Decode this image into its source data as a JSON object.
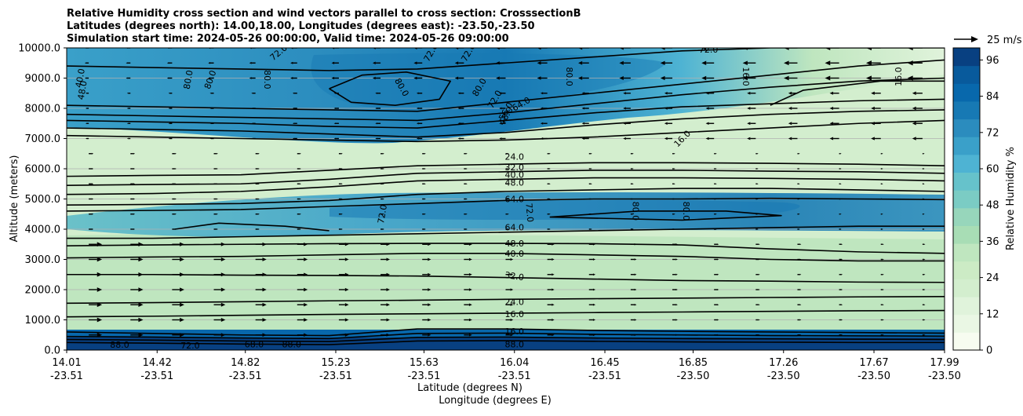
{
  "chart_data": {
    "type": "contour",
    "title_lines": [
      "Relative Humidity cross section and wind vectors parallel to cross section: CrosssectionB",
      "Latitudes (degrees north): 14.00,18.00, Longitudes (degrees east): -23.50,-23.50",
      "Simulation start time: 2024-05-26 00:00:00, Valid time: 2024-05-26 09:00:00"
    ],
    "xlabel": "Latitude (degrees N)",
    "xlabel2": "Longitude (degrees E)",
    "ylabel": "Altitude (meters)",
    "x_ticks": [
      {
        "lat": "14.01",
        "lon": "-23.51"
      },
      {
        "lat": "14.42",
        "lon": "-23.51"
      },
      {
        "lat": "14.82",
        "lon": "-23.51"
      },
      {
        "lat": "15.23",
        "lon": "-23.51"
      },
      {
        "lat": "15.63",
        "lon": "-23.51"
      },
      {
        "lat": "16.04",
        "lon": "-23.51"
      },
      {
        "lat": "16.45",
        "lon": "-23.51"
      },
      {
        "lat": "16.85",
        "lon": "-23.50"
      },
      {
        "lat": "17.26",
        "lon": "-23.50"
      },
      {
        "lat": "17.67",
        "lon": "-23.50"
      },
      {
        "lat": "17.99",
        "lon": "-23.50"
      }
    ],
    "y_ticks": [
      "0.0",
      "1000.0",
      "2000.0",
      "3000.0",
      "4000.0",
      "5000.0",
      "6000.0",
      "7000.0",
      "8000.0",
      "9000.0",
      "10000.0"
    ],
    "ylim": [
      0,
      10000
    ],
    "grid": "horizontal",
    "colorbar": {
      "label": "Relative Humidity %",
      "ticks": [
        "0",
        "12",
        "24",
        "36",
        "48",
        "60",
        "72",
        "84",
        "96"
      ],
      "range": [
        0,
        100
      ],
      "colors": [
        "#f7fcf0",
        "#eaf7e4",
        "#e0f3db",
        "#d3eece",
        "#ccebc5",
        "#bfe6bf",
        "#a8ddb5",
        "#97d6bb",
        "#7bccc4",
        "#66c2cb",
        "#4eb3d3",
        "#3aa0c9",
        "#2b8cbe",
        "#1779b4",
        "#0868ac",
        "#085a9c",
        "#084081"
      ]
    },
    "quiver_key": {
      "label": "25 m/s"
    },
    "contour_labels": [
      {
        "text": "88.0",
        "lat": 14.25,
        "alt": 180,
        "rot": 0
      },
      {
        "text": "72.0",
        "lat": 14.57,
        "alt": 160,
        "rot": 0
      },
      {
        "text": "68.0",
        "lat": 14.86,
        "alt": 200,
        "rot": 0
      },
      {
        "text": "88.0",
        "lat": 15.03,
        "alt": 200,
        "rot": 0
      },
      {
        "text": "16.0",
        "lat": 16.04,
        "alt": 620,
        "rot": 0
      },
      {
        "text": "88.0",
        "lat": 16.04,
        "alt": 200,
        "rot": 0
      },
      {
        "text": "16.0",
        "lat": 16.04,
        "alt": 1200,
        "rot": 0
      },
      {
        "text": "24.0",
        "lat": 16.04,
        "alt": 1600,
        "rot": 0
      },
      {
        "text": "32.0",
        "lat": 16.04,
        "alt": 2450,
        "rot": 8
      },
      {
        "text": "40.0",
        "lat": 16.04,
        "alt": 3200,
        "rot": 0
      },
      {
        "text": "48.0",
        "lat": 16.04,
        "alt": 3530,
        "rot": 0
      },
      {
        "text": "64.0",
        "lat": 16.04,
        "alt": 4070,
        "rot": 0
      },
      {
        "text": "72.0",
        "lat": 15.44,
        "alt": 4500,
        "rot": -80
      },
      {
        "text": "72.0",
        "lat": 16.11,
        "alt": 4550,
        "rot": 85
      },
      {
        "text": "80.0",
        "lat": 16.59,
        "alt": 4600,
        "rot": 90
      },
      {
        "text": "80.0",
        "lat": 16.82,
        "alt": 4600,
        "rot": 90
      },
      {
        "text": "64.0",
        "lat": 16.04,
        "alt": 5000,
        "rot": 0
      },
      {
        "text": "48.0",
        "lat": 16.04,
        "alt": 5550,
        "rot": 0
      },
      {
        "text": "40.0",
        "lat": 16.04,
        "alt": 5800,
        "rot": 0
      },
      {
        "text": "32.0",
        "lat": 16.04,
        "alt": 6050,
        "rot": 0
      },
      {
        "text": "24.0",
        "lat": 16.04,
        "alt": 6400,
        "rot": 0
      },
      {
        "text": "16.0",
        "lat": 16.8,
        "alt": 7000,
        "rot": -45
      },
      {
        "text": "48.0",
        "lat": 16.0,
        "alt": 7750,
        "rot": -60
      },
      {
        "text": "56.0",
        "lat": 16.0,
        "alt": 7900,
        "rot": -60
      },
      {
        "text": "64.0",
        "lat": 16.07,
        "alt": 8150,
        "rot": -30
      },
      {
        "text": "72.0",
        "lat": 15.95,
        "alt": 8300,
        "rot": -60
      },
      {
        "text": "80.0",
        "lat": 15.88,
        "alt": 8700,
        "rot": -60
      },
      {
        "text": "80.0",
        "lat": 15.53,
        "alt": 8700,
        "rot": 60
      },
      {
        "text": "80.0",
        "lat": 16.29,
        "alt": 9050,
        "rot": 90
      },
      {
        "text": "16.0",
        "lat": 17.09,
        "alt": 9050,
        "rot": 90
      },
      {
        "text": "16.0",
        "lat": 17.78,
        "alt": 9050,
        "rot": -90
      },
      {
        "text": "80.0",
        "lat": 14.56,
        "alt": 8950,
        "rot": -80
      },
      {
        "text": "80.0",
        "lat": 14.66,
        "alt": 8950,
        "rot": -70
      },
      {
        "text": "80.0",
        "lat": 14.92,
        "alt": 8950,
        "rot": 90
      },
      {
        "text": "48.0",
        "lat": 14.08,
        "alt": 8600,
        "rot": -80
      },
      {
        "text": "40.0",
        "lat": 14.07,
        "alt": 9000,
        "rot": -80
      },
      {
        "text": "72.0",
        "lat": 14.97,
        "alt": 9850,
        "rot": -40
      },
      {
        "text": "72.0",
        "lat": 15.66,
        "alt": 9850,
        "rot": -60
      },
      {
        "text": "72.0",
        "lat": 15.83,
        "alt": 9850,
        "rot": -60
      },
      {
        "text": "72.0",
        "lat": 16.92,
        "alt": 9950,
        "rot": 0
      }
    ]
  }
}
